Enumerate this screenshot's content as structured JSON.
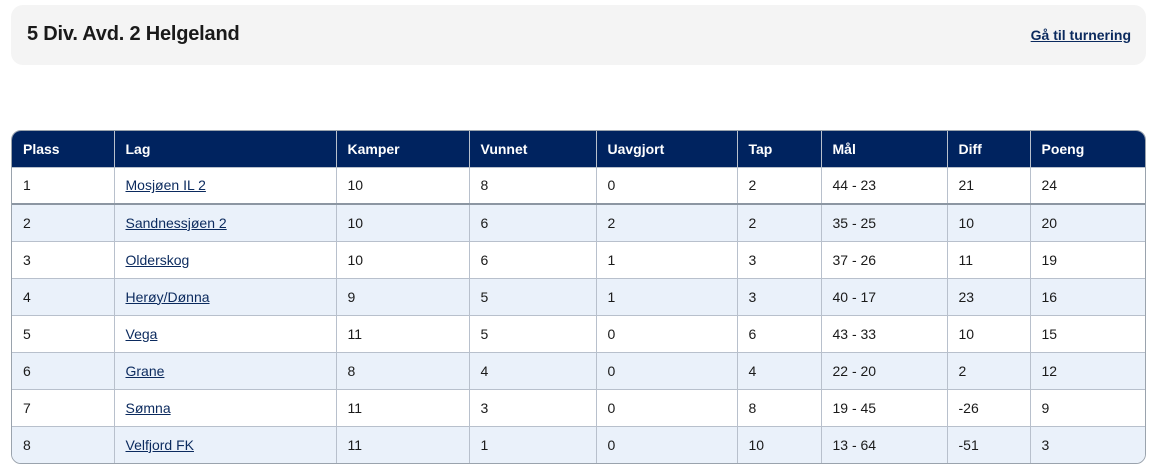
{
  "header": {
    "title": "5 Div. Avd. 2 Helgeland",
    "tournament_link": "Gå til turnering"
  },
  "table": {
    "columns": [
      "Plass",
      "Lag",
      "Kamper",
      "Vunnet",
      "Uavgjort",
      "Tap",
      "Mål",
      "Diff",
      "Poeng"
    ],
    "rows": [
      {
        "plass": "1",
        "lag": "Mosjøen IL 2",
        "kamper": "10",
        "vunnet": "8",
        "uavgjort": "0",
        "tap": "2",
        "maal": "44 - 23",
        "diff": "21",
        "poeng": "24"
      },
      {
        "plass": "2",
        "lag": "Sandnessjøen 2",
        "kamper": "10",
        "vunnet": "6",
        "uavgjort": "2",
        "tap": "2",
        "maal": "35 - 25",
        "diff": "10",
        "poeng": "20"
      },
      {
        "plass": "3",
        "lag": "Olderskog",
        "kamper": "10",
        "vunnet": "6",
        "uavgjort": "1",
        "tap": "3",
        "maal": "37 - 26",
        "diff": "11",
        "poeng": "19"
      },
      {
        "plass": "4",
        "lag": "Herøy/Dønna",
        "kamper": "9",
        "vunnet": "5",
        "uavgjort": "1",
        "tap": "3",
        "maal": "40 - 17",
        "diff": "23",
        "poeng": "16"
      },
      {
        "plass": "5",
        "lag": "Vega",
        "kamper": "11",
        "vunnet": "5",
        "uavgjort": "0",
        "tap": "6",
        "maal": "43 - 33",
        "diff": "10",
        "poeng": "15"
      },
      {
        "plass": "6",
        "lag": "Grane",
        "kamper": "8",
        "vunnet": "4",
        "uavgjort": "0",
        "tap": "4",
        "maal": "22 - 20",
        "diff": "2",
        "poeng": "12"
      },
      {
        "plass": "7",
        "lag": "Sømna",
        "kamper": "11",
        "vunnet": "3",
        "uavgjort": "0",
        "tap": "8",
        "maal": "19 - 45",
        "diff": "-26",
        "poeng": "9"
      },
      {
        "plass": "8",
        "lag": "Velfjord FK",
        "kamper": "11",
        "vunnet": "1",
        "uavgjort": "0",
        "tap": "10",
        "maal": "13 - 64",
        "diff": "-51",
        "poeng": "3"
      }
    ]
  },
  "colors": {
    "header_bg": "#00235f",
    "row_alt": "#eaf1fa",
    "link": "#0b2a5e"
  }
}
